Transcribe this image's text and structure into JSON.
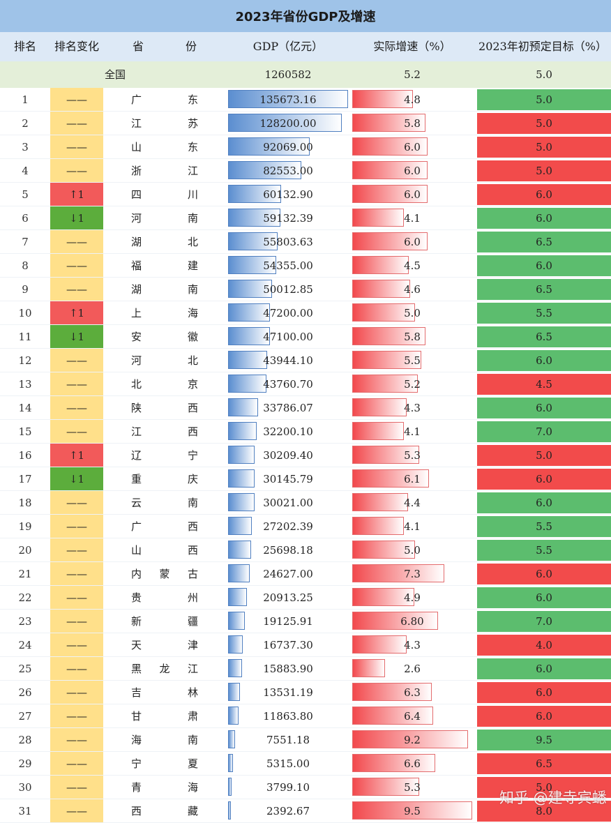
{
  "title": "2023年省份GDP及增速",
  "headers": {
    "rank": "排名",
    "change": "排名变化",
    "prov_a": "省",
    "prov_b": "份",
    "gdp": "GDP（亿元）",
    "growth": "实际增速（%）",
    "target": "2023年初预定目标（%）"
  },
  "national": {
    "label": "全国",
    "gdp": "1260582",
    "growth": "5.2",
    "target": "5.0"
  },
  "colors": {
    "up": "#f25a5a",
    "down": "#5cad3c",
    "same": "#ffe08a",
    "target_green": "#5cbd6e",
    "target_red": "#f24b4b"
  },
  "rows": [
    {
      "rank": "1",
      "change": "——",
      "dir": "same",
      "province": "广东",
      "gdp": "135673.16",
      "growth": "4.8",
      "target": "5.0",
      "target_color": "green"
    },
    {
      "rank": "2",
      "change": "——",
      "dir": "same",
      "province": "江苏",
      "gdp": "128200.00",
      "growth": "5.8",
      "target": "5.0",
      "target_color": "red"
    },
    {
      "rank": "3",
      "change": "——",
      "dir": "same",
      "province": "山东",
      "gdp": "92069.00",
      "growth": "6.0",
      "target": "5.0",
      "target_color": "red"
    },
    {
      "rank": "4",
      "change": "——",
      "dir": "same",
      "province": "浙江",
      "gdp": "82553.00",
      "growth": "6.0",
      "target": "5.0",
      "target_color": "red"
    },
    {
      "rank": "5",
      "change": "↑1",
      "dir": "up",
      "province": "四川",
      "gdp": "60132.90",
      "growth": "6.0",
      "target": "6.0",
      "target_color": "red"
    },
    {
      "rank": "6",
      "change": "↓1",
      "dir": "down",
      "province": "河南",
      "gdp": "59132.39",
      "growth": "4.1",
      "target": "6.0",
      "target_color": "green"
    },
    {
      "rank": "7",
      "change": "——",
      "dir": "same",
      "province": "湖北",
      "gdp": "55803.63",
      "growth": "6.0",
      "target": "6.5",
      "target_color": "green"
    },
    {
      "rank": "8",
      "change": "——",
      "dir": "same",
      "province": "福建",
      "gdp": "54355.00",
      "growth": "4.5",
      "target": "6.0",
      "target_color": "green"
    },
    {
      "rank": "9",
      "change": "——",
      "dir": "same",
      "province": "湖南",
      "gdp": "50012.85",
      "growth": "4.6",
      "target": "6.5",
      "target_color": "green"
    },
    {
      "rank": "10",
      "change": "↑1",
      "dir": "up",
      "province": "上海",
      "gdp": "47200.00",
      "growth": "5.0",
      "target": "5.5",
      "target_color": "green"
    },
    {
      "rank": "11",
      "change": "↓1",
      "dir": "down",
      "province": "安徽",
      "gdp": "47100.00",
      "growth": "5.8",
      "target": "6.5",
      "target_color": "green"
    },
    {
      "rank": "12",
      "change": "——",
      "dir": "same",
      "province": "河北",
      "gdp": "43944.10",
      "growth": "5.5",
      "target": "6.0",
      "target_color": "green"
    },
    {
      "rank": "13",
      "change": "——",
      "dir": "same",
      "province": "北京",
      "gdp": "43760.70",
      "growth": "5.2",
      "target": "4.5",
      "target_color": "red"
    },
    {
      "rank": "14",
      "change": "——",
      "dir": "same",
      "province": "陕西",
      "gdp": "33786.07",
      "growth": "4.3",
      "target": "6.0",
      "target_color": "green"
    },
    {
      "rank": "15",
      "change": "——",
      "dir": "same",
      "province": "江西",
      "gdp": "32200.10",
      "growth": "4.1",
      "target": "7.0",
      "target_color": "green"
    },
    {
      "rank": "16",
      "change": "↑1",
      "dir": "up",
      "province": "辽宁",
      "gdp": "30209.40",
      "growth": "5.3",
      "target": "5.0",
      "target_color": "red"
    },
    {
      "rank": "17",
      "change": "↓1",
      "dir": "down",
      "province": "重庆",
      "gdp": "30145.79",
      "growth": "6.1",
      "target": "6.0",
      "target_color": "red"
    },
    {
      "rank": "18",
      "change": "——",
      "dir": "same",
      "province": "云南",
      "gdp": "30021.00",
      "growth": "4.4",
      "target": "6.0",
      "target_color": "green"
    },
    {
      "rank": "19",
      "change": "——",
      "dir": "same",
      "province": "广西",
      "gdp": "27202.39",
      "growth": "4.1",
      "target": "5.5",
      "target_color": "green"
    },
    {
      "rank": "20",
      "change": "——",
      "dir": "same",
      "province": "山西",
      "gdp": "25698.18",
      "growth": "5.0",
      "target": "5.5",
      "target_color": "green"
    },
    {
      "rank": "21",
      "change": "——",
      "dir": "same",
      "province": "内蒙古",
      "gdp": "24627.00",
      "growth": "7.3",
      "target": "6.0",
      "target_color": "red"
    },
    {
      "rank": "22",
      "change": "——",
      "dir": "same",
      "province": "贵州",
      "gdp": "20913.25",
      "growth": "4.9",
      "target": "6.0",
      "target_color": "green"
    },
    {
      "rank": "23",
      "change": "——",
      "dir": "same",
      "province": "新疆",
      "gdp": "19125.91",
      "growth": "6.80",
      "target": "7.0",
      "target_color": "green"
    },
    {
      "rank": "24",
      "change": "——",
      "dir": "same",
      "province": "天津",
      "gdp": "16737.30",
      "growth": "4.3",
      "target": "4.0",
      "target_color": "red"
    },
    {
      "rank": "25",
      "change": "——",
      "dir": "same",
      "province": "黑龙江",
      "gdp": "15883.90",
      "growth": "2.6",
      "target": "6.0",
      "target_color": "green"
    },
    {
      "rank": "26",
      "change": "——",
      "dir": "same",
      "province": "吉林",
      "gdp": "13531.19",
      "growth": "6.3",
      "target": "6.0",
      "target_color": "red"
    },
    {
      "rank": "27",
      "change": "——",
      "dir": "same",
      "province": "甘肃",
      "gdp": "11863.80",
      "growth": "6.4",
      "target": "6.0",
      "target_color": "red"
    },
    {
      "rank": "28",
      "change": "——",
      "dir": "same",
      "province": "海南",
      "gdp": "7551.18",
      "growth": "9.2",
      "target": "9.5",
      "target_color": "green"
    },
    {
      "rank": "29",
      "change": "——",
      "dir": "same",
      "province": "宁夏",
      "gdp": "5315.00",
      "growth": "6.6",
      "target": "6.5",
      "target_color": "red"
    },
    {
      "rank": "30",
      "change": "——",
      "dir": "same",
      "province": "青海",
      "gdp": "3799.10",
      "growth": "5.3",
      "target": "5.0",
      "target_color": "red"
    },
    {
      "rank": "31",
      "change": "——",
      "dir": "same",
      "province": "西藏",
      "gdp": "2392.67",
      "growth": "9.5",
      "target": "8.0",
      "target_color": "red"
    }
  ],
  "watermark": "知乎 @建寺宾蟋"
}
